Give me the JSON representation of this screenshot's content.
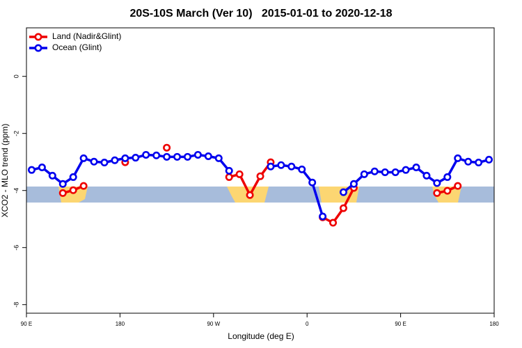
{
  "chart_data": {
    "type": "line",
    "title": "20S-10S March (Ver 10)   2015-01-01 to 2020-12-18",
    "xlabel": "Longitude (deg E)",
    "ylabel": "XCO2 - MLO trend (ppm)",
    "x": [
      95,
      105,
      115,
      125,
      135,
      145,
      155,
      165,
      175,
      185,
      195,
      205,
      215,
      225,
      235,
      245,
      255,
      265,
      275,
      285,
      295,
      305,
      315,
      325,
      335,
      345,
      355,
      365,
      375,
      385,
      395,
      405,
      415,
      425,
      435,
      445,
      455,
      465,
      475,
      485,
      495,
      505,
      515,
      525,
      535
    ],
    "series": [
      {
        "name": "Land (Nadir&Glint)",
        "color": "#ee0000",
        "values": [
          null,
          null,
          null,
          -4.09,
          -3.99,
          -3.84,
          null,
          null,
          null,
          -3.01,
          null,
          null,
          null,
          -2.5,
          null,
          null,
          null,
          null,
          null,
          -3.53,
          -3.43,
          -4.16,
          -3.5,
          -3.01,
          null,
          null,
          null,
          null,
          -4.94,
          -5.13,
          -4.62,
          -3.91,
          null,
          null,
          null,
          null,
          null,
          null,
          null,
          -4.09,
          -4.01,
          -3.84,
          null,
          null,
          null
        ]
      },
      {
        "name": "Ocean (Glint)",
        "color": "#0000ee",
        "values": [
          -3.28,
          -3.19,
          -3.48,
          -3.77,
          -3.53,
          -2.87,
          -2.99,
          -3.02,
          -2.94,
          -2.87,
          -2.85,
          -2.75,
          -2.77,
          -2.82,
          -2.82,
          -2.82,
          -2.75,
          -2.8,
          -2.87,
          -3.31,
          null,
          null,
          null,
          -3.16,
          -3.11,
          -3.16,
          -3.26,
          -3.72,
          -4.91,
          null,
          -4.06,
          -3.77,
          -3.43,
          -3.33,
          -3.36,
          -3.36,
          -3.28,
          -3.19,
          -3.48,
          -3.74,
          -3.53,
          -2.87,
          -2.99,
          -3.02,
          -2.92
        ]
      }
    ],
    "xlim": [
      90,
      540
    ],
    "xticks": [
      {
        "value": 90,
        "label": "90 E"
      },
      {
        "value": 180,
        "label": "180"
      },
      {
        "value": 270,
        "label": "90 W"
      },
      {
        "value": 360,
        "label": "0"
      },
      {
        "value": 450,
        "label": "90 E"
      },
      {
        "value": 540,
        "label": "180"
      }
    ],
    "ylim": [
      -8.3,
      1.7
    ],
    "yticks": [
      0,
      -2,
      -4,
      -6,
      -8
    ],
    "legend": "top-left"
  }
}
